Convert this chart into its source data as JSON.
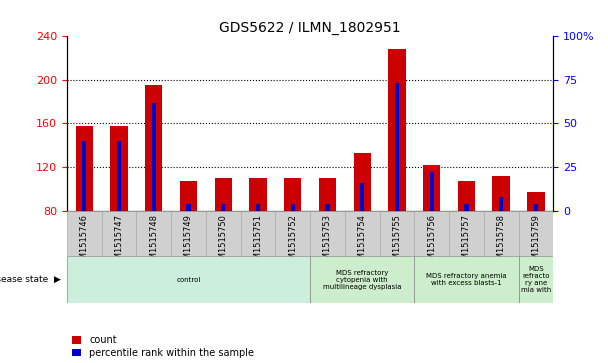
{
  "title": "GDS5622 / ILMN_1802951",
  "samples": [
    "GSM1515746",
    "GSM1515747",
    "GSM1515748",
    "GSM1515749",
    "GSM1515750",
    "GSM1515751",
    "GSM1515752",
    "GSM1515753",
    "GSM1515754",
    "GSM1515755",
    "GSM1515756",
    "GSM1515757",
    "GSM1515758",
    "GSM1515759"
  ],
  "count_values": [
    158,
    158,
    195,
    107,
    110,
    110,
    110,
    110,
    133,
    228,
    122,
    107,
    112,
    97
  ],
  "percentile_values": [
    40,
    40,
    62,
    4,
    4,
    4,
    4,
    4,
    16,
    73,
    22,
    4,
    8,
    4
  ],
  "ymin": 80,
  "ymax": 240,
  "y2min": 0,
  "y2max": 100,
  "yticks": [
    80,
    120,
    160,
    200,
    240
  ],
  "y2ticks": [
    0,
    25,
    50,
    75,
    100
  ],
  "disease_groups": [
    {
      "label": "control",
      "start": 0,
      "end": 7,
      "color": "#cceedd"
    },
    {
      "label": "MDS refractory\ncytopenia with\nmultilineage dysplasia",
      "start": 7,
      "end": 10,
      "color": "#cceecc"
    },
    {
      "label": "MDS refractory anemia\nwith excess blasts-1",
      "start": 10,
      "end": 13,
      "color": "#cceecc"
    },
    {
      "label": "MDS\nrefracto\nry ane\nmia with",
      "start": 13,
      "end": 14,
      "color": "#cceecc"
    }
  ],
  "bar_width": 0.5,
  "percentile_bar_width": 0.12,
  "count_color": "#cc0000",
  "percentile_color": "#0000cc",
  "tick_label_bg": "#d0d0d0",
  "tick_label_border": "#aaaaaa"
}
